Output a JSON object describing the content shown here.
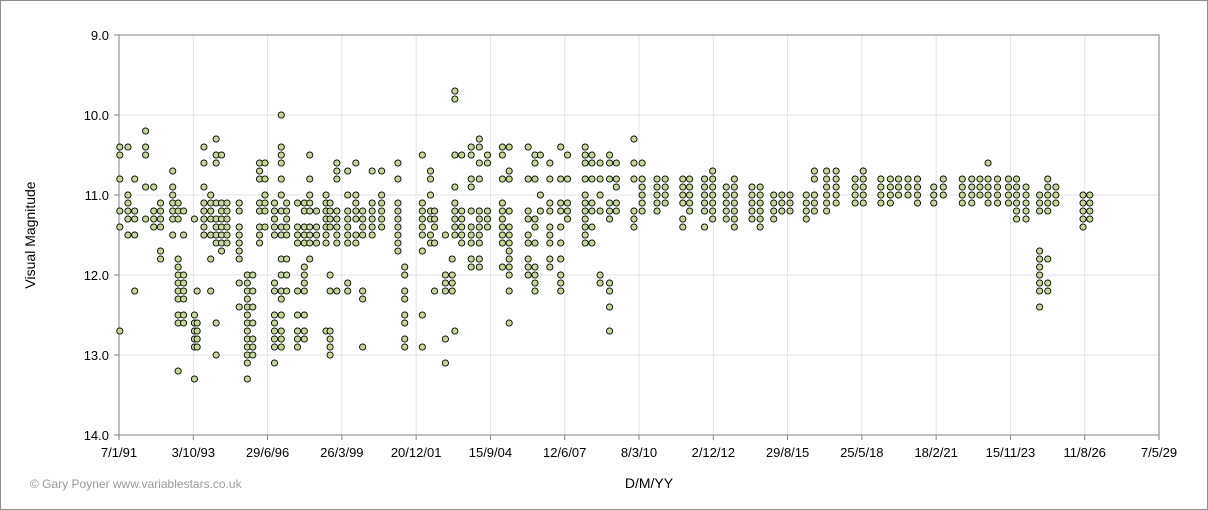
{
  "chart_data": {
    "type": "scatter",
    "title": "",
    "xlabel": "D/M/YY",
    "ylabel": "Visual Magnitude",
    "x_ticks": [
      "7/1/91",
      "3/10/93",
      "29/6/96",
      "26/3/99",
      "20/12/01",
      "15/9/04",
      "12/6/07",
      "8/3/10",
      "2/12/12",
      "29/8/15",
      "25/5/18",
      "18/2/21",
      "15/11/23",
      "11/8/26",
      "7/5/29"
    ],
    "y_ticks": [
      "9.0",
      "10.0",
      "11.0",
      "12.0",
      "13.0",
      "14.0"
    ],
    "ylim": [
      9.0,
      14.0
    ],
    "y_inverted": true,
    "grid": true,
    "marker_color": "#c4d79b",
    "marker_edge": "#000000",
    "clusters": [
      {
        "x": 1991.05,
        "ys": [
          10.4,
          10.5,
          10.8,
          11.2,
          11.4,
          12.7
        ]
      },
      {
        "x": 1991.35,
        "ys": [
          10.4,
          11.0,
          11.1,
          11.2,
          11.3,
          11.5
        ]
      },
      {
        "x": 1991.6,
        "ys": [
          10.8,
          11.2,
          11.3,
          11.5,
          12.2
        ]
      },
      {
        "x": 1992.0,
        "ys": [
          10.2,
          10.4,
          10.5,
          10.9,
          11.3
        ]
      },
      {
        "x": 1992.3,
        "ys": [
          10.9,
          11.2,
          11.3,
          11.4
        ]
      },
      {
        "x": 1992.55,
        "ys": [
          11.1,
          11.2,
          11.3,
          11.4,
          11.7,
          11.8
        ]
      },
      {
        "x": 1993.0,
        "ys": [
          10.7,
          10.9,
          11.0,
          11.1,
          11.2,
          11.3,
          11.5
        ]
      },
      {
        "x": 1993.2,
        "ys": [
          11.1,
          11.2,
          11.3,
          11.8,
          11.9,
          12.0,
          12.1,
          12.2,
          12.3,
          12.5,
          12.6,
          13.2
        ]
      },
      {
        "x": 1993.4,
        "ys": [
          11.2,
          11.5,
          12.0,
          12.1,
          12.2,
          12.3,
          12.5,
          12.6
        ]
      },
      {
        "x": 1993.8,
        "ys": [
          11.3,
          12.5,
          12.6,
          12.7,
          12.8,
          12.9,
          13.3
        ]
      },
      {
        "x": 1993.9,
        "ys": [
          12.2,
          12.6,
          12.7,
          12.8,
          12.9
        ]
      },
      {
        "x": 1994.15,
        "ys": [
          10.4,
          10.6,
          10.9,
          11.1,
          11.2,
          11.3,
          11.4,
          11.5
        ]
      },
      {
        "x": 1994.4,
        "ys": [
          11.0,
          11.1,
          11.2,
          11.3,
          11.5,
          11.8,
          12.2
        ]
      },
      {
        "x": 1994.6,
        "ys": [
          10.3,
          10.5,
          10.6,
          11.1,
          11.3,
          11.4,
          11.5,
          11.6,
          12.6,
          13.0
        ]
      },
      {
        "x": 1994.8,
        "ys": [
          10.5,
          11.1,
          11.2,
          11.3,
          11.4,
          11.5,
          11.6,
          11.7
        ]
      },
      {
        "x": 1995.0,
        "ys": [
          11.1,
          11.2,
          11.3,
          11.4,
          11.5,
          11.6
        ]
      },
      {
        "x": 1995.45,
        "ys": [
          11.1,
          11.2,
          11.4,
          11.5,
          11.6,
          11.7,
          11.8,
          12.1,
          12.4
        ]
      },
      {
        "x": 1995.75,
        "ys": [
          12.0,
          12.1,
          12.2,
          12.3,
          12.4,
          12.5,
          12.6,
          12.7,
          12.8,
          12.9,
          13.0,
          13.1,
          13.3
        ]
      },
      {
        "x": 1995.95,
        "ys": [
          12.0,
          12.2,
          12.4,
          12.6,
          12.8,
          12.9,
          13.0
        ]
      },
      {
        "x": 1996.2,
        "ys": [
          10.6,
          10.7,
          10.8,
          11.1,
          11.2,
          11.4,
          11.5,
          11.6
        ]
      },
      {
        "x": 1996.4,
        "ys": [
          10.6,
          10.8,
          11.0,
          11.1,
          11.2,
          11.4
        ]
      },
      {
        "x": 1996.75,
        "ys": [
          11.1,
          11.2,
          11.3,
          11.4,
          11.5,
          12.1,
          12.2,
          12.5,
          12.6,
          12.7,
          12.8,
          12.9,
          13.1
        ]
      },
      {
        "x": 1997.0,
        "ys": [
          10.0,
          10.4,
          10.5,
          10.6,
          10.8,
          11.0,
          11.2,
          11.4,
          11.5,
          11.8,
          12.0,
          12.2,
          12.3,
          12.5,
          12.7,
          12.8,
          12.9
        ]
      },
      {
        "x": 1997.2,
        "ys": [
          11.1,
          11.2,
          11.3,
          11.4,
          11.5,
          11.8,
          12.0,
          12.2
        ]
      },
      {
        "x": 1997.6,
        "ys": [
          11.1,
          11.4,
          11.5,
          11.6,
          12.2,
          12.5,
          12.7,
          12.8,
          12.9
        ]
      },
      {
        "x": 1997.85,
        "ys": [
          11.1,
          11.2,
          11.4,
          11.5,
          11.6,
          11.9,
          12.0,
          12.1,
          12.2,
          12.5,
          12.7,
          12.8
        ]
      },
      {
        "x": 1998.05,
        "ys": [
          10.5,
          10.8,
          11.0,
          11.1,
          11.2,
          11.4,
          11.5,
          11.6,
          11.8
        ]
      },
      {
        "x": 1998.3,
        "ys": [
          11.2,
          11.4,
          11.5,
          11.6
        ]
      },
      {
        "x": 1998.65,
        "ys": [
          11.0,
          11.1,
          11.2,
          11.3,
          11.4,
          11.5,
          11.6,
          12.7
        ]
      },
      {
        "x": 1998.8,
        "ys": [
          11.1,
          11.2,
          11.3,
          11.4,
          12.0,
          12.2,
          12.7,
          12.8,
          12.9,
          13.0
        ]
      },
      {
        "x": 1999.05,
        "ys": [
          10.6,
          10.7,
          10.8,
          11.2,
          11.3,
          11.4,
          11.5,
          11.6,
          12.2
        ]
      },
      {
        "x": 1999.45,
        "ys": [
          10.7,
          11.0,
          11.2,
          11.3,
          11.4,
          11.5,
          11.6,
          12.1,
          12.2
        ]
      },
      {
        "x": 1999.75,
        "ys": [
          10.6,
          11.0,
          11.1,
          11.2,
          11.3,
          11.5,
          11.6
        ]
      },
      {
        "x": 2000.0,
        "ys": [
          11.2,
          11.3,
          11.4,
          11.5,
          12.2,
          12.3,
          12.9
        ]
      },
      {
        "x": 2000.35,
        "ys": [
          10.7,
          11.1,
          11.2,
          11.3,
          11.4,
          11.5
        ]
      },
      {
        "x": 2000.7,
        "ys": [
          10.7,
          11.0,
          11.1,
          11.2,
          11.3,
          11.4
        ]
      },
      {
        "x": 2001.3,
        "ys": [
          10.6,
          10.8,
          11.1,
          11.2,
          11.3,
          11.4,
          11.5,
          11.6,
          11.7
        ]
      },
      {
        "x": 2001.55,
        "ys": [
          11.9,
          12.0,
          12.2,
          12.3,
          12.5,
          12.6,
          12.8,
          12.9
        ]
      },
      {
        "x": 2002.2,
        "ys": [
          10.5,
          11.1,
          11.2,
          11.3,
          11.4,
          11.5,
          11.7,
          12.5,
          12.9
        ]
      },
      {
        "x": 2002.5,
        "ys": [
          10.7,
          10.8,
          11.0,
          11.2,
          11.3,
          11.5,
          11.6
        ]
      },
      {
        "x": 2002.65,
        "ys": [
          11.2,
          11.3,
          11.4,
          11.6,
          12.2
        ]
      },
      {
        "x": 2003.05,
        "ys": [
          11.5,
          12.0,
          12.1,
          12.2,
          12.8,
          13.1
        ]
      },
      {
        "x": 2003.3,
        "ys": [
          11.8,
          12.0,
          12.1,
          12.2
        ]
      },
      {
        "x": 2003.4,
        "ys": [
          9.7,
          9.8,
          10.5,
          10.9,
          11.1,
          11.2,
          11.3,
          11.4,
          11.5,
          12.7
        ]
      },
      {
        "x": 2003.65,
        "ys": [
          10.5,
          11.2,
          11.3,
          11.4,
          11.5,
          11.6
        ]
      },
      {
        "x": 2004.0,
        "ys": [
          10.4,
          10.5,
          10.8,
          10.9,
          11.2,
          11.4,
          11.5,
          11.6,
          11.8,
          11.9
        ]
      },
      {
        "x": 2004.3,
        "ys": [
          10.3,
          10.4,
          10.6,
          10.8,
          11.2,
          11.3,
          11.4,
          11.5,
          11.6,
          11.8,
          11.9
        ]
      },
      {
        "x": 2004.6,
        "ys": [
          10.5,
          10.6,
          11.2,
          11.3,
          11.4
        ]
      },
      {
        "x": 2005.15,
        "ys": [
          10.4,
          10.5,
          10.8,
          11.1,
          11.2,
          11.3,
          11.4,
          11.5,
          11.6,
          11.9
        ]
      },
      {
        "x": 2005.4,
        "ys": [
          10.4,
          10.7,
          10.8,
          11.2,
          11.4,
          11.5,
          11.6,
          11.7,
          11.8,
          11.9,
          12.0,
          12.2,
          12.6
        ]
      },
      {
        "x": 2006.1,
        "ys": [
          10.4,
          10.8,
          11.2,
          11.3,
          11.5,
          11.6,
          11.8,
          11.9,
          12.0
        ]
      },
      {
        "x": 2006.35,
        "ys": [
          10.5,
          10.6,
          10.8,
          11.3,
          11.4,
          11.6,
          11.9,
          12.0,
          12.1,
          12.2
        ]
      },
      {
        "x": 2006.55,
        "ys": [
          10.5,
          11.0,
          11.2
        ]
      },
      {
        "x": 2006.9,
        "ys": [
          10.6,
          10.8,
          11.1,
          11.2,
          11.4,
          11.5,
          11.6,
          11.8,
          11.9
        ]
      },
      {
        "x": 2007.3,
        "ys": [
          10.4,
          10.8,
          11.1,
          11.2,
          11.4,
          11.6,
          11.8,
          12.0,
          12.1,
          12.2
        ]
      },
      {
        "x": 2007.55,
        "ys": [
          10.5,
          10.8,
          11.1,
          11.2,
          11.3
        ]
      },
      {
        "x": 2008.2,
        "ys": [
          10.4,
          10.5,
          10.6,
          10.8,
          11.0,
          11.1,
          11.2,
          11.3,
          11.4,
          11.5,
          11.6
        ]
      },
      {
        "x": 2008.45,
        "ys": [
          10.5,
          10.6,
          10.8,
          11.1,
          11.2,
          11.4,
          11.6
        ]
      },
      {
        "x": 2008.75,
        "ys": [
          10.6,
          10.8,
          11.0,
          11.2,
          12.0,
          12.1
        ]
      },
      {
        "x": 2009.1,
        "ys": [
          10.5,
          10.6,
          10.8,
          11.1,
          11.2,
          11.3,
          12.1,
          12.2,
          12.4,
          12.7
        ]
      },
      {
        "x": 2009.35,
        "ys": [
          10.6,
          10.8,
          10.9,
          11.1,
          11.2
        ]
      },
      {
        "x": 2010.0,
        "ys": [
          10.3,
          10.6,
          10.8,
          11.2,
          11.3,
          11.4
        ]
      },
      {
        "x": 2010.3,
        "ys": [
          10.6,
          10.8,
          10.9,
          11.0,
          11.1,
          11.2
        ]
      },
      {
        "x": 2010.85,
        "ys": [
          10.8,
          10.9,
          11.0,
          11.1,
          11.2
        ]
      },
      {
        "x": 2011.15,
        "ys": [
          10.8,
          10.9,
          11.0,
          11.1
        ]
      },
      {
        "x": 2011.8,
        "ys": [
          10.8,
          10.9,
          11.0,
          11.1,
          11.3,
          11.4
        ]
      },
      {
        "x": 2012.05,
        "ys": [
          10.8,
          10.9,
          11.0,
          11.1,
          11.2
        ]
      },
      {
        "x": 2012.6,
        "ys": [
          10.8,
          10.9,
          11.0,
          11.1,
          11.2,
          11.4
        ]
      },
      {
        "x": 2012.9,
        "ys": [
          10.7,
          10.8,
          10.9,
          11.0,
          11.1,
          11.2,
          11.3
        ]
      },
      {
        "x": 2013.4,
        "ys": [
          10.9,
          11.0,
          11.1,
          11.2,
          11.3
        ]
      },
      {
        "x": 2013.7,
        "ys": [
          10.8,
          10.9,
          11.0,
          11.1,
          11.2,
          11.3,
          11.4
        ]
      },
      {
        "x": 2014.35,
        "ys": [
          10.9,
          11.0,
          11.1,
          11.2,
          11.3
        ]
      },
      {
        "x": 2014.65,
        "ys": [
          10.9,
          11.0,
          11.1,
          11.2,
          11.3,
          11.4
        ]
      },
      {
        "x": 2015.15,
        "ys": [
          11.0,
          11.1,
          11.2,
          11.3
        ]
      },
      {
        "x": 2015.45,
        "ys": [
          11.0,
          11.1,
          11.2
        ]
      },
      {
        "x": 2015.75,
        "ys": [
          11.0,
          11.1,
          11.2
        ]
      },
      {
        "x": 2016.35,
        "ys": [
          11.0,
          11.1,
          11.2,
          11.3
        ]
      },
      {
        "x": 2016.65,
        "ys": [
          10.7,
          10.8,
          11.0,
          11.1,
          11.2
        ]
      },
      {
        "x": 2017.1,
        "ys": [
          10.7,
          10.8,
          10.9,
          11.0,
          11.1,
          11.2
        ]
      },
      {
        "x": 2017.45,
        "ys": [
          10.7,
          10.8,
          10.9,
          11.0,
          11.1
        ]
      },
      {
        "x": 2018.15,
        "ys": [
          10.8,
          10.9,
          11.0,
          11.1
        ]
      },
      {
        "x": 2018.45,
        "ys": [
          10.7,
          10.8,
          10.9,
          11.0,
          11.1
        ]
      },
      {
        "x": 2019.1,
        "ys": [
          10.8,
          10.9,
          11.0,
          11.1
        ]
      },
      {
        "x": 2019.45,
        "ys": [
          10.8,
          10.9,
          11.0,
          11.1
        ]
      },
      {
        "x": 2019.75,
        "ys": [
          10.8,
          10.9,
          11.0
        ]
      },
      {
        "x": 2020.1,
        "ys": [
          10.8,
          10.9,
          11.0
        ]
      },
      {
        "x": 2020.45,
        "ys": [
          10.8,
          10.9,
          11.0,
          11.1
        ]
      },
      {
        "x": 2021.05,
        "ys": [
          10.9,
          11.0,
          11.1
        ]
      },
      {
        "x": 2021.4,
        "ys": [
          10.8,
          10.9,
          11.0
        ]
      },
      {
        "x": 2022.1,
        "ys": [
          10.8,
          10.9,
          11.0,
          11.1
        ]
      },
      {
        "x": 2022.45,
        "ys": [
          10.8,
          10.9,
          11.0,
          11.1
        ]
      },
      {
        "x": 2022.75,
        "ys": [
          10.8,
          10.9,
          11.0
        ]
      },
      {
        "x": 2023.05,
        "ys": [
          10.6,
          10.8,
          10.9,
          11.0,
          11.1
        ]
      },
      {
        "x": 2023.4,
        "ys": [
          10.8,
          10.9,
          11.0,
          11.1
        ]
      },
      {
        "x": 2023.8,
        "ys": [
          10.8,
          10.9,
          11.0,
          11.1
        ]
      },
      {
        "x": 2024.1,
        "ys": [
          10.8,
          10.9,
          11.0,
          11.1,
          11.2,
          11.3
        ]
      },
      {
        "x": 2024.45,
        "ys": [
          10.9,
          11.0,
          11.1,
          11.2,
          11.3
        ]
      },
      {
        "x": 2024.95,
        "ys": [
          11.0,
          11.1,
          11.2,
          11.7,
          11.8,
          11.9,
          12.0,
          12.1,
          12.2,
          12.4
        ]
      },
      {
        "x": 2025.25,
        "ys": [
          10.8,
          10.9,
          11.0,
          11.1,
          11.2,
          11.8,
          12.1,
          12.2
        ]
      },
      {
        "x": 2025.55,
        "ys": [
          10.9,
          11.0,
          11.1
        ]
      },
      {
        "x": 2026.55,
        "ys": [
          11.0,
          11.1,
          11.2,
          11.3,
          11.4
        ]
      },
      {
        "x": 2026.8,
        "ys": [
          11.0,
          11.1,
          11.2,
          11.3
        ]
      }
    ]
  },
  "credit": "© Gary Poyner www.variablestars.co.uk"
}
